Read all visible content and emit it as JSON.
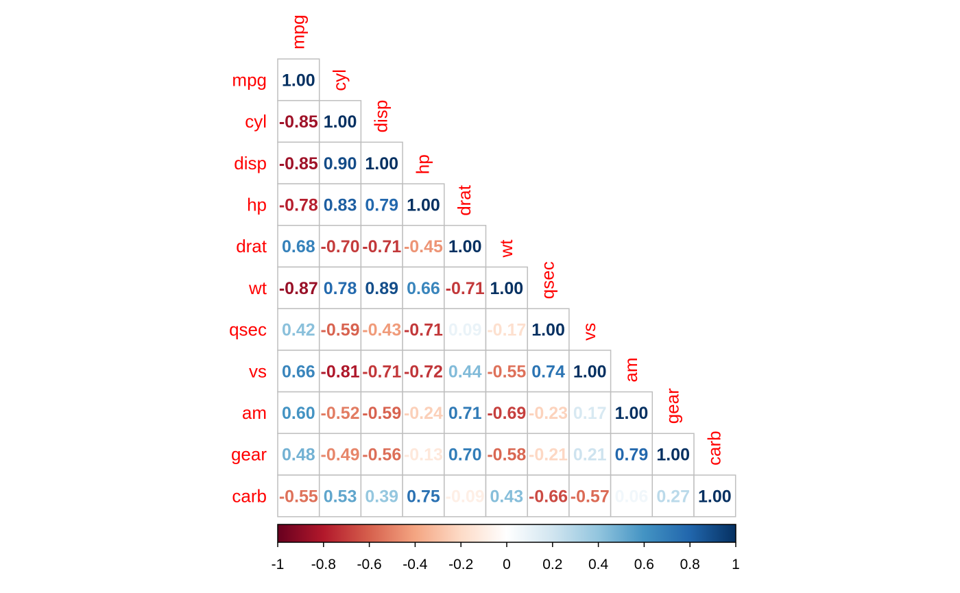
{
  "chart_data": {
    "type": "heatmap",
    "variables": [
      "mpg",
      "cyl",
      "disp",
      "hp",
      "drat",
      "wt",
      "qsec",
      "vs",
      "am",
      "gear",
      "carb"
    ],
    "matrix": [
      [
        "1.00"
      ],
      [
        "-0.85",
        "1.00"
      ],
      [
        "-0.85",
        "0.90",
        "1.00"
      ],
      [
        "-0.78",
        "0.83",
        "0.79",
        "1.00"
      ],
      [
        "0.68",
        "-0.70",
        "-0.71",
        "-0.45",
        "1.00"
      ],
      [
        "-0.87",
        "0.78",
        "0.89",
        "0.66",
        "-0.71",
        "1.00"
      ],
      [
        "0.42",
        "-0.59",
        "-0.43",
        "-0.71",
        "0.09",
        "-0.17",
        "1.00"
      ],
      [
        "0.66",
        "-0.81",
        "-0.71",
        "-0.72",
        "0.44",
        "-0.55",
        "0.74",
        "1.00"
      ],
      [
        "0.60",
        "-0.52",
        "-0.59",
        "-0.24",
        "0.71",
        "-0.69",
        "-0.23",
        "0.17",
        "1.00"
      ],
      [
        "0.48",
        "-0.49",
        "-0.56",
        "-0.13",
        "0.70",
        "-0.58",
        "-0.21",
        "0.21",
        "0.79",
        "1.00"
      ],
      [
        "-0.55",
        "0.53",
        "0.39",
        "0.75",
        "-0.09",
        "0.43",
        "-0.66",
        "-0.57",
        "0.06",
        "0.27",
        "1.00"
      ]
    ],
    "colorbar": {
      "range": [
        -1,
        1
      ],
      "ticks": [
        "-1",
        "-0.8",
        "-0.6",
        "-0.4",
        "-0.2",
        "0",
        "0.2",
        "0.4",
        "0.6",
        "0.8",
        "1"
      ]
    },
    "palette": [
      "#67001f",
      "#b2182b",
      "#d6604d",
      "#f4a582",
      "#fddbc7",
      "#ffffff",
      "#d1e5f0",
      "#92c5de",
      "#4393c3",
      "#2166ac",
      "#053061"
    ],
    "label_color": "#ff0000"
  }
}
